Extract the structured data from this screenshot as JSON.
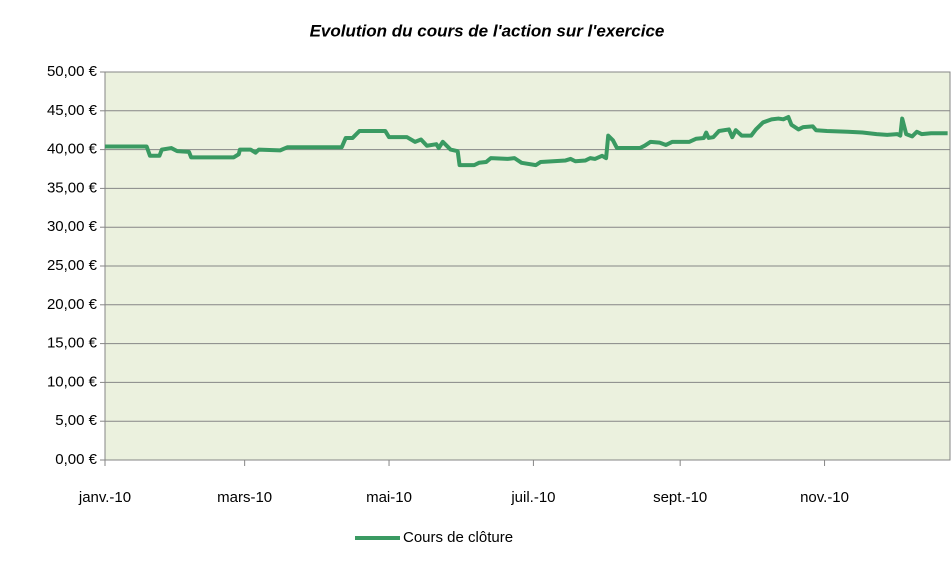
{
  "chart_data": {
    "type": "line",
    "title": "Evolution du cours de l'action sur l'exercice",
    "x": [
      0,
      17.6,
      19,
      23,
      24,
      28,
      30.5,
      35.5,
      36.4,
      54.4,
      56.5,
      57,
      61.5,
      63.6,
      65,
      74,
      77,
      100,
      101.7,
      104.6,
      107.5,
      118.4,
      120,
      127.6,
      131,
      133.5,
      136,
      140,
      141,
      142.7,
      146,
      149,
      149.8,
      156,
      158,
      161,
      163,
      170,
      173,
      176,
      182,
      184,
      194.6,
      196.7,
      198.7,
      203,
      205,
      207,
      210,
      211.7,
      212.6,
      214.6,
      216.3,
      226,
      228,
      230.5,
      234.3,
      237,
      239.7,
      246.9,
      249.8,
      253,
      254,
      255,
      257,
      259.4,
      263.6,
      265,
      266.5,
      269,
      273,
      275,
      278,
      281.6,
      284.5,
      286.6,
      288.7,
      290,
      293,
      295,
      299,
      300.4,
      305,
      313.8,
      320,
      326,
      330.5,
      334.7,
      336,
      336.8,
      338.5,
      341,
      343,
      345,
      349,
      356
    ],
    "series": [
      {
        "name": "Cours de clôture",
        "color": "#3a9a62",
        "values": [
          40.4,
          40.4,
          39.2,
          39.2,
          40.0,
          40.2,
          39.8,
          39.7,
          39.0,
          39.0,
          39.4,
          40.0,
          40.0,
          39.6,
          40.0,
          39.9,
          40.3,
          40.3,
          41.5,
          41.5,
          42.4,
          42.4,
          41.6,
          41.6,
          41.0,
          41.3,
          40.5,
          40.7,
          40.2,
          41.0,
          40.0,
          39.8,
          38.0,
          38.0,
          38.3,
          38.4,
          38.9,
          38.8,
          38.9,
          38.3,
          38.0,
          38.4,
          38.6,
          38.8,
          38.5,
          38.6,
          38.9,
          38.8,
          39.2,
          38.9,
          41.8,
          41.2,
          40.2,
          40.2,
          40.5,
          41.0,
          40.9,
          40.6,
          41.0,
          41.0,
          41.4,
          41.5,
          42.2,
          41.5,
          41.6,
          42.4,
          42.6,
          41.6,
          42.5,
          41.8,
          41.8,
          42.6,
          43.5,
          43.9,
          44.0,
          43.9,
          44.2,
          43.2,
          42.6,
          42.9,
          43.0,
          42.5,
          42.4,
          42.3,
          42.2,
          42.0,
          41.9,
          42.0,
          41.8,
          44.0,
          42.0,
          41.7,
          42.3,
          42.0,
          42.1,
          42.1
        ]
      }
    ],
    "xlim": [
      0,
      357
    ],
    "xticks": [
      {
        "value": 0,
        "label": "janv.-10"
      },
      {
        "value": 59,
        "label": "mars-10"
      },
      {
        "value": 120,
        "label": "mai-10"
      },
      {
        "value": 181,
        "label": "juil.-10"
      },
      {
        "value": 243,
        "label": "sept.-10"
      },
      {
        "value": 304,
        "label": "nov.-10"
      }
    ],
    "ylim": [
      0,
      50
    ],
    "yticks": [
      {
        "value": 0,
        "label": "0,00 €"
      },
      {
        "value": 5,
        "label": "5,00 €"
      },
      {
        "value": 10,
        "label": "10,00 €"
      },
      {
        "value": 15,
        "label": "15,00 €"
      },
      {
        "value": 20,
        "label": "20,00 €"
      },
      {
        "value": 25,
        "label": "25,00 €"
      },
      {
        "value": 30,
        "label": "30,00 €"
      },
      {
        "value": 35,
        "label": "35,00 €"
      },
      {
        "value": 40,
        "label": "40,00 €"
      },
      {
        "value": 45,
        "label": "45,00 €"
      },
      {
        "value": 50,
        "label": "50,00 €"
      }
    ],
    "grid": true,
    "legend": "bottom"
  }
}
